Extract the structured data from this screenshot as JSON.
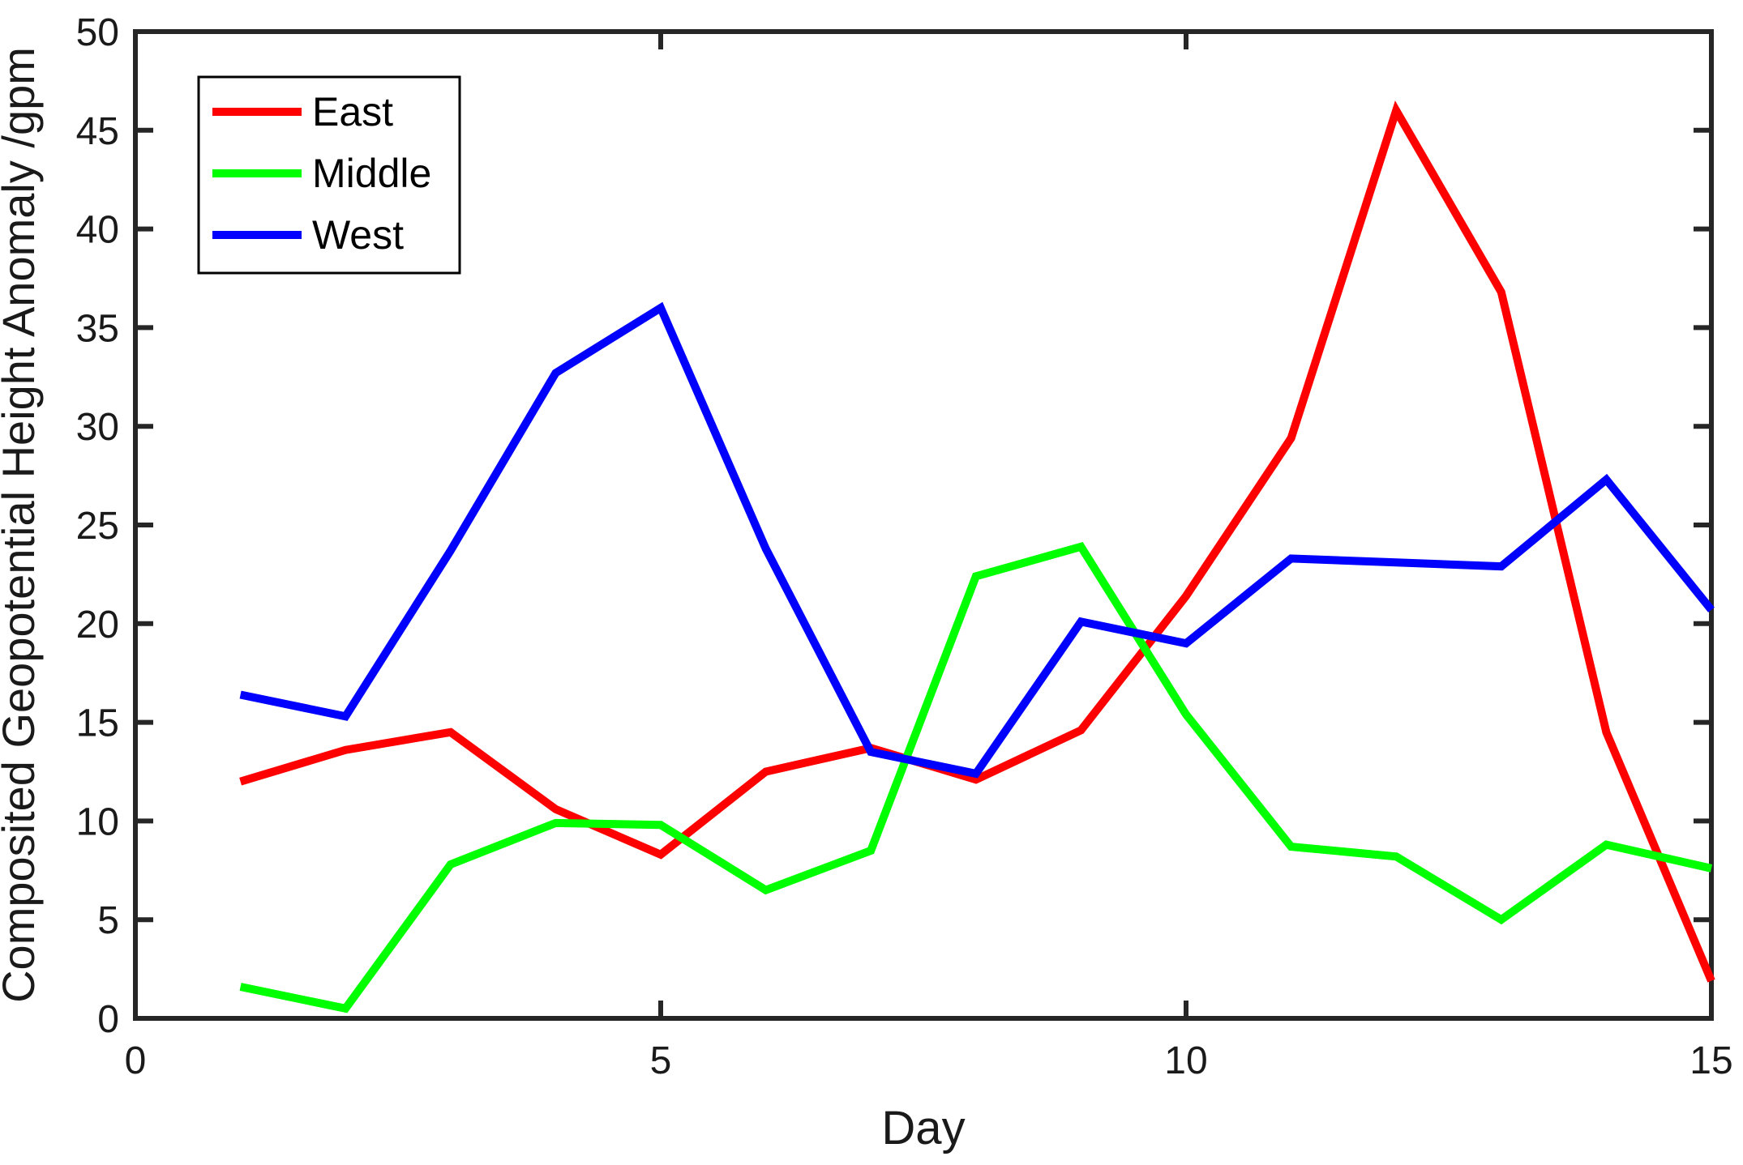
{
  "chart_data": {
    "type": "line",
    "title": "",
    "xlabel": "Day",
    "ylabel": "Composited Geopotential Height Anomaly /gpm",
    "x": [
      1,
      2,
      3,
      4,
      5,
      6,
      7,
      8,
      9,
      10,
      11,
      12,
      13,
      14,
      15
    ],
    "xlim": [
      0,
      15
    ],
    "ylim": [
      0,
      50
    ],
    "xticks": [
      0,
      5,
      10,
      15
    ],
    "yticks": [
      0,
      5,
      10,
      15,
      20,
      25,
      30,
      35,
      40,
      45,
      50
    ],
    "grid": false,
    "legend_position": "top-left",
    "legend_entries": [
      "East",
      "Middle",
      "West"
    ],
    "series": [
      {
        "name": "East",
        "color": "#ff0000",
        "values": [
          12.0,
          13.6,
          14.5,
          10.6,
          8.3,
          12.5,
          13.7,
          12.1,
          14.6,
          21.4,
          29.4,
          46.0,
          36.8,
          14.5,
          1.9
        ]
      },
      {
        "name": "Middle",
        "color": "#00ff00",
        "values": [
          1.6,
          0.5,
          7.8,
          9.9,
          9.8,
          6.5,
          8.5,
          22.4,
          23.9,
          15.4,
          8.7,
          8.2,
          5.0,
          8.8,
          7.6
        ]
      },
      {
        "name": "West",
        "color": "#0000ff",
        "values": [
          16.4,
          15.3,
          23.7,
          32.7,
          36.0,
          23.8,
          13.5,
          12.4,
          20.1,
          19.0,
          23.3,
          23.1,
          22.9,
          27.3,
          20.7
        ]
      }
    ],
    "axis_color": "#262626",
    "text_color": "#1a1a1a",
    "background_color": "#ffffff"
  }
}
